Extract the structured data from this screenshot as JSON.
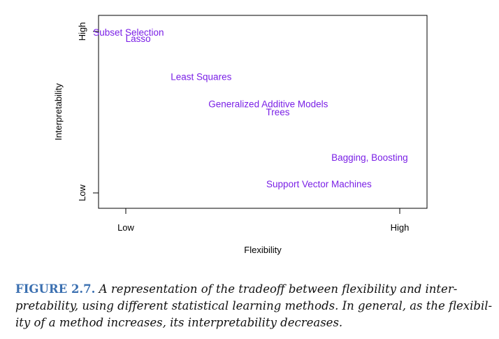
{
  "chart_data": {
    "type": "scatter",
    "xlabel": "Flexibility",
    "ylabel": "Interpretability",
    "x_ticks": [
      "Low",
      "High"
    ],
    "y_ticks": [
      "Low",
      "High"
    ],
    "xlim": [
      0,
      1
    ],
    "ylim": [
      0,
      1
    ],
    "grid": false,
    "points": [
      {
        "label": "Subset Selection",
        "x": 0.01,
        "y": 0.99
      },
      {
        "label": "Lasso",
        "x": 0.045,
        "y": 0.95
      },
      {
        "label": "Least Squares",
        "x": 0.275,
        "y": 0.715
      },
      {
        "label": "Generalized Additive Models",
        "x": 0.52,
        "y": 0.545
      },
      {
        "label": "Trees",
        "x": 0.555,
        "y": 0.495
      },
      {
        "label": "Bagging, Boosting",
        "x": 0.89,
        "y": 0.215
      },
      {
        "label": "Support Vector Machines",
        "x": 0.705,
        "y": 0.05
      }
    ],
    "label_color": "#7a1fe6"
  },
  "caption": {
    "label": "FIGURE 2.7.",
    "lines": [
      "A representation of the tradeoff between flexibility and inter-",
      "pretability, using different statistical learning methods. In general, as the flexibil-",
      "ity of a method increases, its interpretability decreases."
    ]
  }
}
